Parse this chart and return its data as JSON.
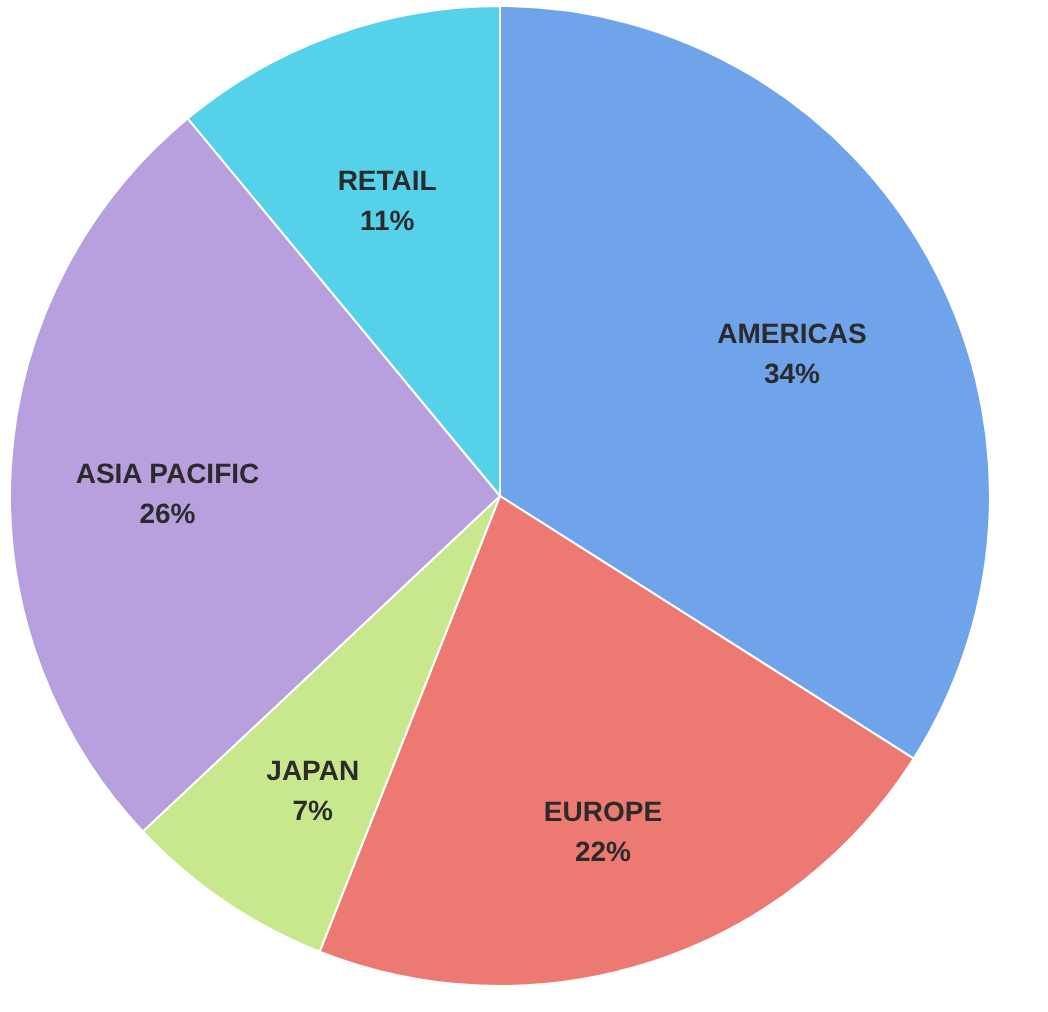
{
  "chart_data": {
    "type": "pie",
    "categories": [
      "AMERICAS",
      "EUROPE",
      "JAPAN",
      "ASIA PACIFIC",
      "RETAIL"
    ],
    "values": [
      34,
      22,
      7,
      26,
      11
    ],
    "value_labels": [
      "34%",
      "22%",
      "7%",
      "26%",
      "11%"
    ],
    "colors": [
      "#6fa3ea",
      "#ec7a72",
      "#c9e88e",
      "#b89fdd",
      "#55d2ea"
    ]
  }
}
